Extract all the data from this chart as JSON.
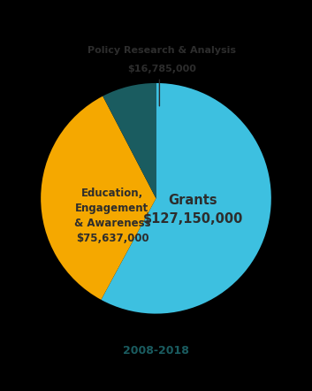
{
  "subtitle": "2008-2018",
  "slices": [
    {
      "label": "Grants",
      "value": 127150000,
      "color": "#3DC0E0"
    },
    {
      "label": "Education,\nEngagement\n& Awareness\n$75,637,000",
      "value": 75637000,
      "color": "#F5A800"
    },
    {
      "label": "Policy Research & Analysis",
      "value": 16785000,
      "color": "#1A5C60"
    }
  ],
  "grants_label": "Grants",
  "grants_value": "$127,150,000",
  "edu_label": "Education,\nEngagement\n& Awareness",
  "edu_value": "$75,637,000",
  "policy_label": "Policy Research & Analysis",
  "policy_value": "$16,785,000",
  "text_color": "#2D2D2D",
  "subtitle_color": "#1A5C60",
  "bg_color": "#000000",
  "line_color": "#2D2D2D"
}
